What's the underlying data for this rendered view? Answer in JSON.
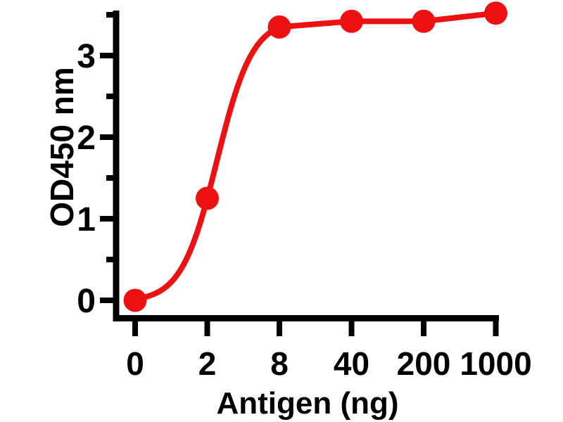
{
  "chart_data": {
    "type": "scatter",
    "subtype": "sigmoidal-dose-response-fit",
    "title": "",
    "xlabel": "Antigen (ng)",
    "ylabel": "OD450 nm",
    "categories": [
      "0",
      "2",
      "8",
      "40",
      "200",
      "1000"
    ],
    "x_values_ng": [
      0,
      2,
      8,
      40,
      200,
      1000
    ],
    "series": [
      {
        "name": "OD450",
        "values": [
          0.0,
          1.25,
          3.35,
          3.42,
          3.42,
          3.52
        ],
        "color": "#ee1111",
        "marker": "filled-circle",
        "line": "sigmoid-fit"
      }
    ],
    "y_major_ticks": [
      0,
      1,
      2,
      3
    ],
    "y_minor_ticks": [
      0.5,
      1.5,
      2.5,
      3.5
    ],
    "ylim": [
      -0.25,
      3.56
    ],
    "x_scale": "category-equal-spacing",
    "grid": false,
    "legend_position": "none",
    "axis_color": "#000000",
    "background_color": "#ffffff"
  }
}
